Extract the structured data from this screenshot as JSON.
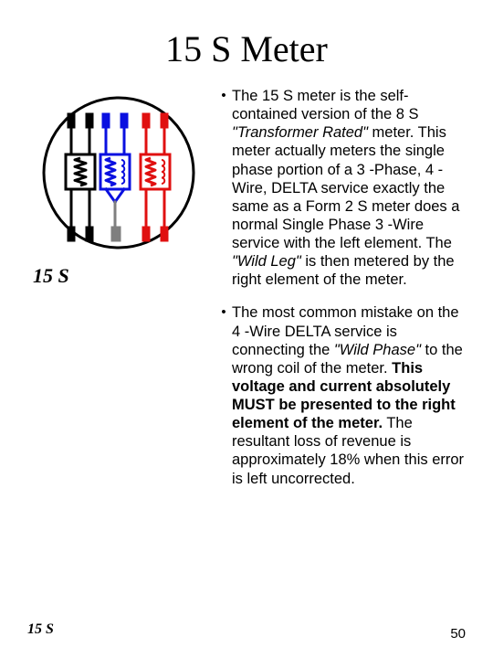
{
  "title": "15 S Meter",
  "figure_caption": "15 S",
  "bullets": [
    {
      "runs": [
        {
          "t": "The 15 S meter is the self-contained version of the 8 S "
        },
        {
          "t": "\"Transformer Rated\"",
          "em": true
        },
        {
          "t": " meter.  This meter actually meters the single phase portion of a 3 -Phase, 4 -Wire, DELTA service exactly the same as a Form 2 S meter does a normal Single Phase 3 -Wire service with the left element.  The "
        },
        {
          "t": "\"Wild Leg\"",
          "em": true
        },
        {
          "t": " is then metered by the right element of the meter."
        }
      ]
    },
    {
      "runs": [
        {
          "t": "The most common mistake on the 4 -Wire DELTA service is connecting the "
        },
        {
          "t": "\"Wild Phase\"",
          "em": true
        },
        {
          "t": " to the wrong coil of the meter.  "
        },
        {
          "t": "This voltage and current absolutely MUST be presented to the right element of the meter.",
          "bold": true
        },
        {
          "t": "   The resultant loss of revenue is approximately 18% when this error is left uncorrected."
        }
      ]
    }
  ],
  "footer_label": "15 S",
  "page_number": "50",
  "diagram": {
    "circle_stroke": "#000000",
    "circle_stroke_width": 3,
    "circle_radius": 82,
    "background": "#ffffff",
    "element_black": "#000000",
    "element_blue": "#0a10e0",
    "element_gray": "#7f7f7f",
    "element_red": "#e01010",
    "line_width": 3
  }
}
